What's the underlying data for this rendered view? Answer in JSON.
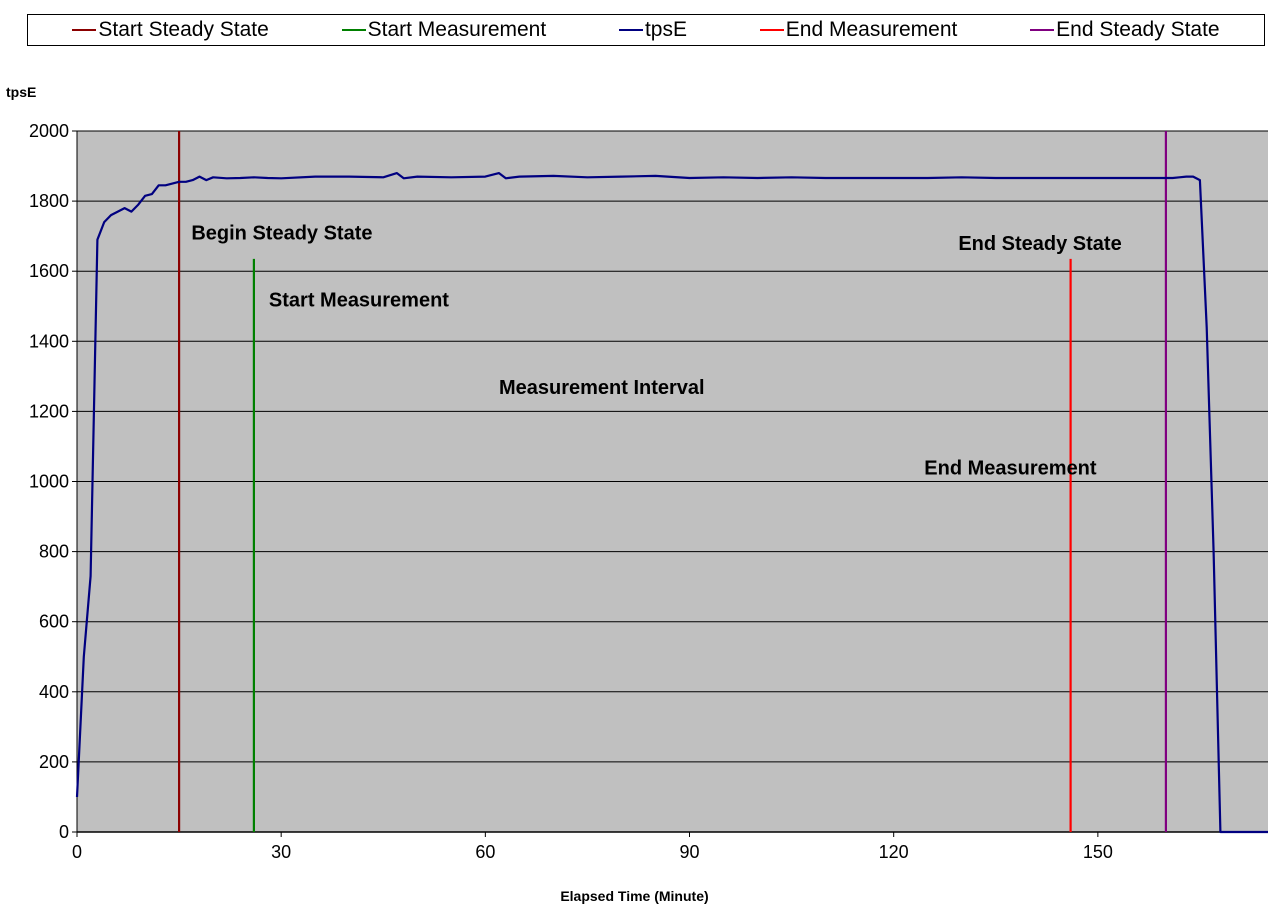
{
  "legend": {
    "items": [
      {
        "label": "Start Steady State",
        "color": "#8b0000"
      },
      {
        "label": "Start Measurement",
        "color": "#008000"
      },
      {
        "label": "tpsE",
        "color": "#000080"
      },
      {
        "label": "End Measurement",
        "color": "#ff0000"
      },
      {
        "label": "End Steady State",
        "color": "#800080"
      }
    ]
  },
  "chart_data": {
    "type": "line",
    "ylabel": "tpsE",
    "xlabel": "Elapsed Time (Minute)",
    "xlim": [
      0,
      175
    ],
    "ylim": [
      0,
      2000
    ],
    "xticks": [
      0,
      30,
      60,
      90,
      120,
      150
    ],
    "yticks": [
      0,
      200,
      400,
      600,
      800,
      1000,
      1200,
      1400,
      1600,
      1800,
      2000
    ],
    "grid": "horizontal",
    "plot_background": "#c0c0c0",
    "legend_position": "top",
    "series": [
      {
        "name": "tpsE",
        "color": "#000080",
        "x": [
          0,
          1,
          2,
          3,
          4,
          5,
          6,
          7,
          8,
          9,
          10,
          11,
          12,
          13,
          14,
          15,
          16,
          17,
          18,
          19,
          20,
          22,
          24,
          26,
          28,
          30,
          35,
          40,
          45,
          47,
          48,
          50,
          55,
          60,
          62,
          63,
          65,
          70,
          75,
          80,
          85,
          90,
          95,
          100,
          105,
          110,
          115,
          120,
          125,
          130,
          135,
          140,
          145,
          150,
          155,
          160,
          161,
          162,
          163,
          164,
          165,
          166,
          167,
          168,
          170,
          175
        ],
        "y": [
          100,
          500,
          730,
          1690,
          1740,
          1760,
          1770,
          1780,
          1770,
          1790,
          1815,
          1820,
          1845,
          1845,
          1850,
          1855,
          1855,
          1860,
          1870,
          1860,
          1868,
          1865,
          1866,
          1868,
          1866,
          1865,
          1870,
          1870,
          1868,
          1880,
          1865,
          1870,
          1868,
          1870,
          1880,
          1865,
          1870,
          1872,
          1868,
          1870,
          1872,
          1866,
          1868,
          1866,
          1868,
          1866,
          1866,
          1866,
          1866,
          1868,
          1866,
          1866,
          1866,
          1866,
          1866,
          1866,
          1866,
          1868,
          1870,
          1870,
          1860,
          1440,
          800,
          0,
          0,
          0
        ]
      },
      {
        "name": "Start Steady State",
        "color": "#8b0000",
        "x": [
          15,
          15
        ],
        "y": [
          0,
          2000
        ]
      },
      {
        "name": "Start Measurement",
        "color": "#008000",
        "x": [
          26,
          26
        ],
        "y": [
          0,
          1635
        ]
      },
      {
        "name": "End Measurement",
        "color": "#ff0000",
        "x": [
          146,
          146
        ],
        "y": [
          0,
          1635
        ]
      },
      {
        "name": "End Steady State",
        "color": "#800080",
        "x": [
          160,
          160
        ],
        "y": [
          0,
          2000
        ]
      }
    ],
    "annotations": [
      {
        "text": "Begin Steady State",
        "x": 16.8,
        "y": 1690
      },
      {
        "text": "Start Measurement",
        "x": 28.2,
        "y": 1500
      },
      {
        "text": "Measurement Interval",
        "x": 62,
        "y": 1250
      },
      {
        "text": "End Measurement",
        "x": 124.5,
        "y": 1020
      },
      {
        "text": "End Steady State",
        "x": 129.5,
        "y": 1660
      }
    ]
  }
}
